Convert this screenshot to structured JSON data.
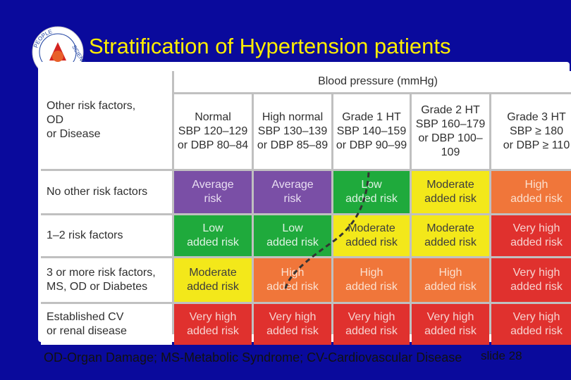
{
  "title": "Stratification of Hypertension patients",
  "logo": {
    "top_text": "PEOPLE",
    "right_text": "SCIENCE",
    "icon": "university-seal-icon"
  },
  "table": {
    "bp_header": "Blood pressure (mmHg)",
    "corner": "Other risk factors,\nOD\nor Disease",
    "columns": [
      "Normal\nSBP 120–129\nor DBP 80–84",
      "High normal\nSBP 130–139\nor DBP 85–89",
      "Grade 1 HT\nSBP 140–159\nor DBP 90–99",
      "Grade 2 HT\nSBP 160–179\nor DBP 100–109",
      "Grade 3 HT\nSBP ≥ 180\nor DBP ≥ 110"
    ],
    "rows": [
      {
        "label": "No other risk factors",
        "cells": [
          {
            "text": "Average\nrisk",
            "level": "avg"
          },
          {
            "text": "Average\nrisk",
            "level": "avg"
          },
          {
            "text": "Low\nadded risk",
            "level": "low"
          },
          {
            "text": "Moderate\nadded risk",
            "level": "mod"
          },
          {
            "text": "High\nadded risk",
            "level": "high"
          }
        ]
      },
      {
        "label": "1–2 risk factors",
        "cells": [
          {
            "text": "Low\nadded risk",
            "level": "low"
          },
          {
            "text": "Low\nadded risk",
            "level": "low"
          },
          {
            "text": "Moderate\nadded risk",
            "level": "mod"
          },
          {
            "text": "Moderate\nadded risk",
            "level": "mod"
          },
          {
            "text": "Very high\nadded risk",
            "level": "vh"
          }
        ]
      },
      {
        "label": "3 or more risk factors,\nMS, OD or Diabetes",
        "cells": [
          {
            "text": "Moderate\nadded risk",
            "level": "mod"
          },
          {
            "text": "High\nadded risk",
            "level": "high"
          },
          {
            "text": "High\nadded risk",
            "level": "high"
          },
          {
            "text": "High\nadded risk",
            "level": "high"
          },
          {
            "text": "Very high\nadded risk",
            "level": "vh"
          }
        ]
      },
      {
        "label": "Established CV\nor renal disease",
        "cells": [
          {
            "text": "Very high\nadded risk",
            "level": "vh"
          },
          {
            "text": "Very high\nadded risk",
            "level": "vh"
          },
          {
            "text": "Very high\nadded risk",
            "level": "vh"
          },
          {
            "text": "Very high\nadded risk",
            "level": "vh"
          },
          {
            "text": "Very high\nadded risk",
            "level": "vh"
          }
        ]
      }
    ]
  },
  "footnote": "OD-Organ Damage;  MS-Metabolic Syndrome; CV-Cardiovascular Disease",
  "slide_number": "slide 28",
  "colors": {
    "background": "#0a0a9c",
    "title": "#ffee00",
    "avg": "#7a4fa6",
    "low": "#1faa3c",
    "mod": "#f3e81a",
    "high": "#f0763a",
    "very_high": "#e0312e"
  }
}
